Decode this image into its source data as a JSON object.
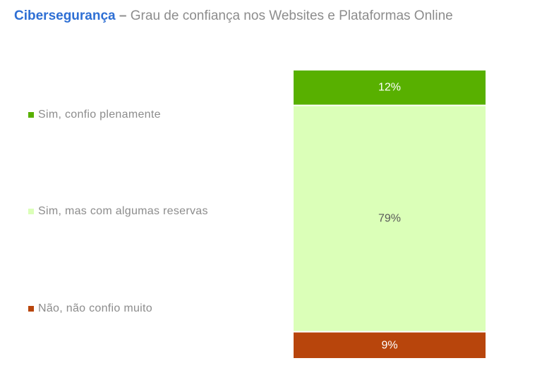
{
  "title": {
    "strong": "Cibersegurança",
    "dash": "–",
    "rest": "Grau de confiança nos Websites e Plataformas Online"
  },
  "chart_data": {
    "type": "bar",
    "stacked": true,
    "categories": [
      ""
    ],
    "series": [
      {
        "name": "Sim, confio plenamente",
        "values": [
          12
        ],
        "label": "12%",
        "color": "#58b000",
        "label_color": "#ffffff"
      },
      {
        "name": "Sim, mas com algumas reservas",
        "values": [
          79
        ],
        "label": "79%",
        "color": "#dbffb8",
        "label_color": "#595959"
      },
      {
        "name": "Não, não confio muito",
        "values": [
          9
        ],
        "label": "9%",
        "color": "#b8450c",
        "label_color": "#ffffff"
      }
    ],
    "ylim": [
      0,
      100
    ],
    "grid": false,
    "legend": "left"
  }
}
